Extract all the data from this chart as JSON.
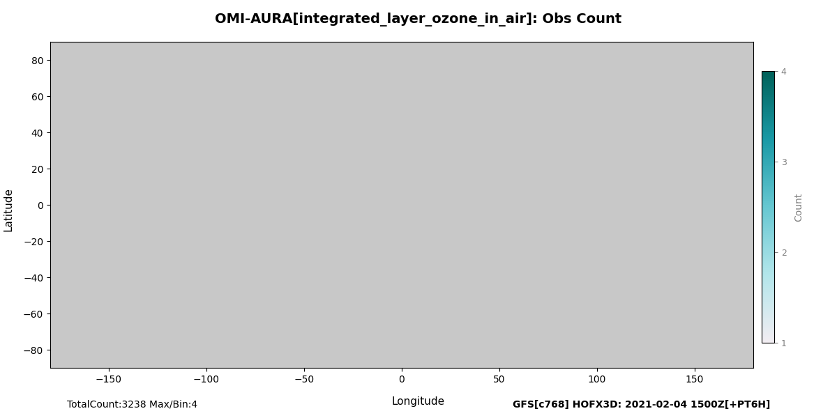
{
  "title": "OMI-AURA[integrated_layer_ozone_in_air]: Obs Count",
  "xlabel": "Longitude",
  "ylabel": "Latitude",
  "colorbar_label": "Count",
  "colorbar_ticks": [
    1,
    2,
    3,
    4
  ],
  "total_count": "TotalCount:3238 Max/Bin:4",
  "gfs_label": "GFS[c768] HOFX3D: 2021-02-04 1500Z[+PT6H]",
  "cmap": "GnBu_r",
  "vmin": 1,
  "vmax": 4,
  "xlim": [
    -180,
    180
  ],
  "ylim": [
    -90,
    90
  ],
  "lon_ticks": [
    -180,
    -150,
    -120,
    -90,
    -60,
    -30,
    0,
    30,
    60,
    90,
    120,
    150,
    180
  ],
  "lat_ticks": [
    -80,
    -60,
    -40,
    -20,
    0,
    20,
    40,
    60,
    80
  ],
  "background_color": "#c8c8c8",
  "land_color": "#d4d4d4",
  "ocean_color": "#c8c8c8"
}
